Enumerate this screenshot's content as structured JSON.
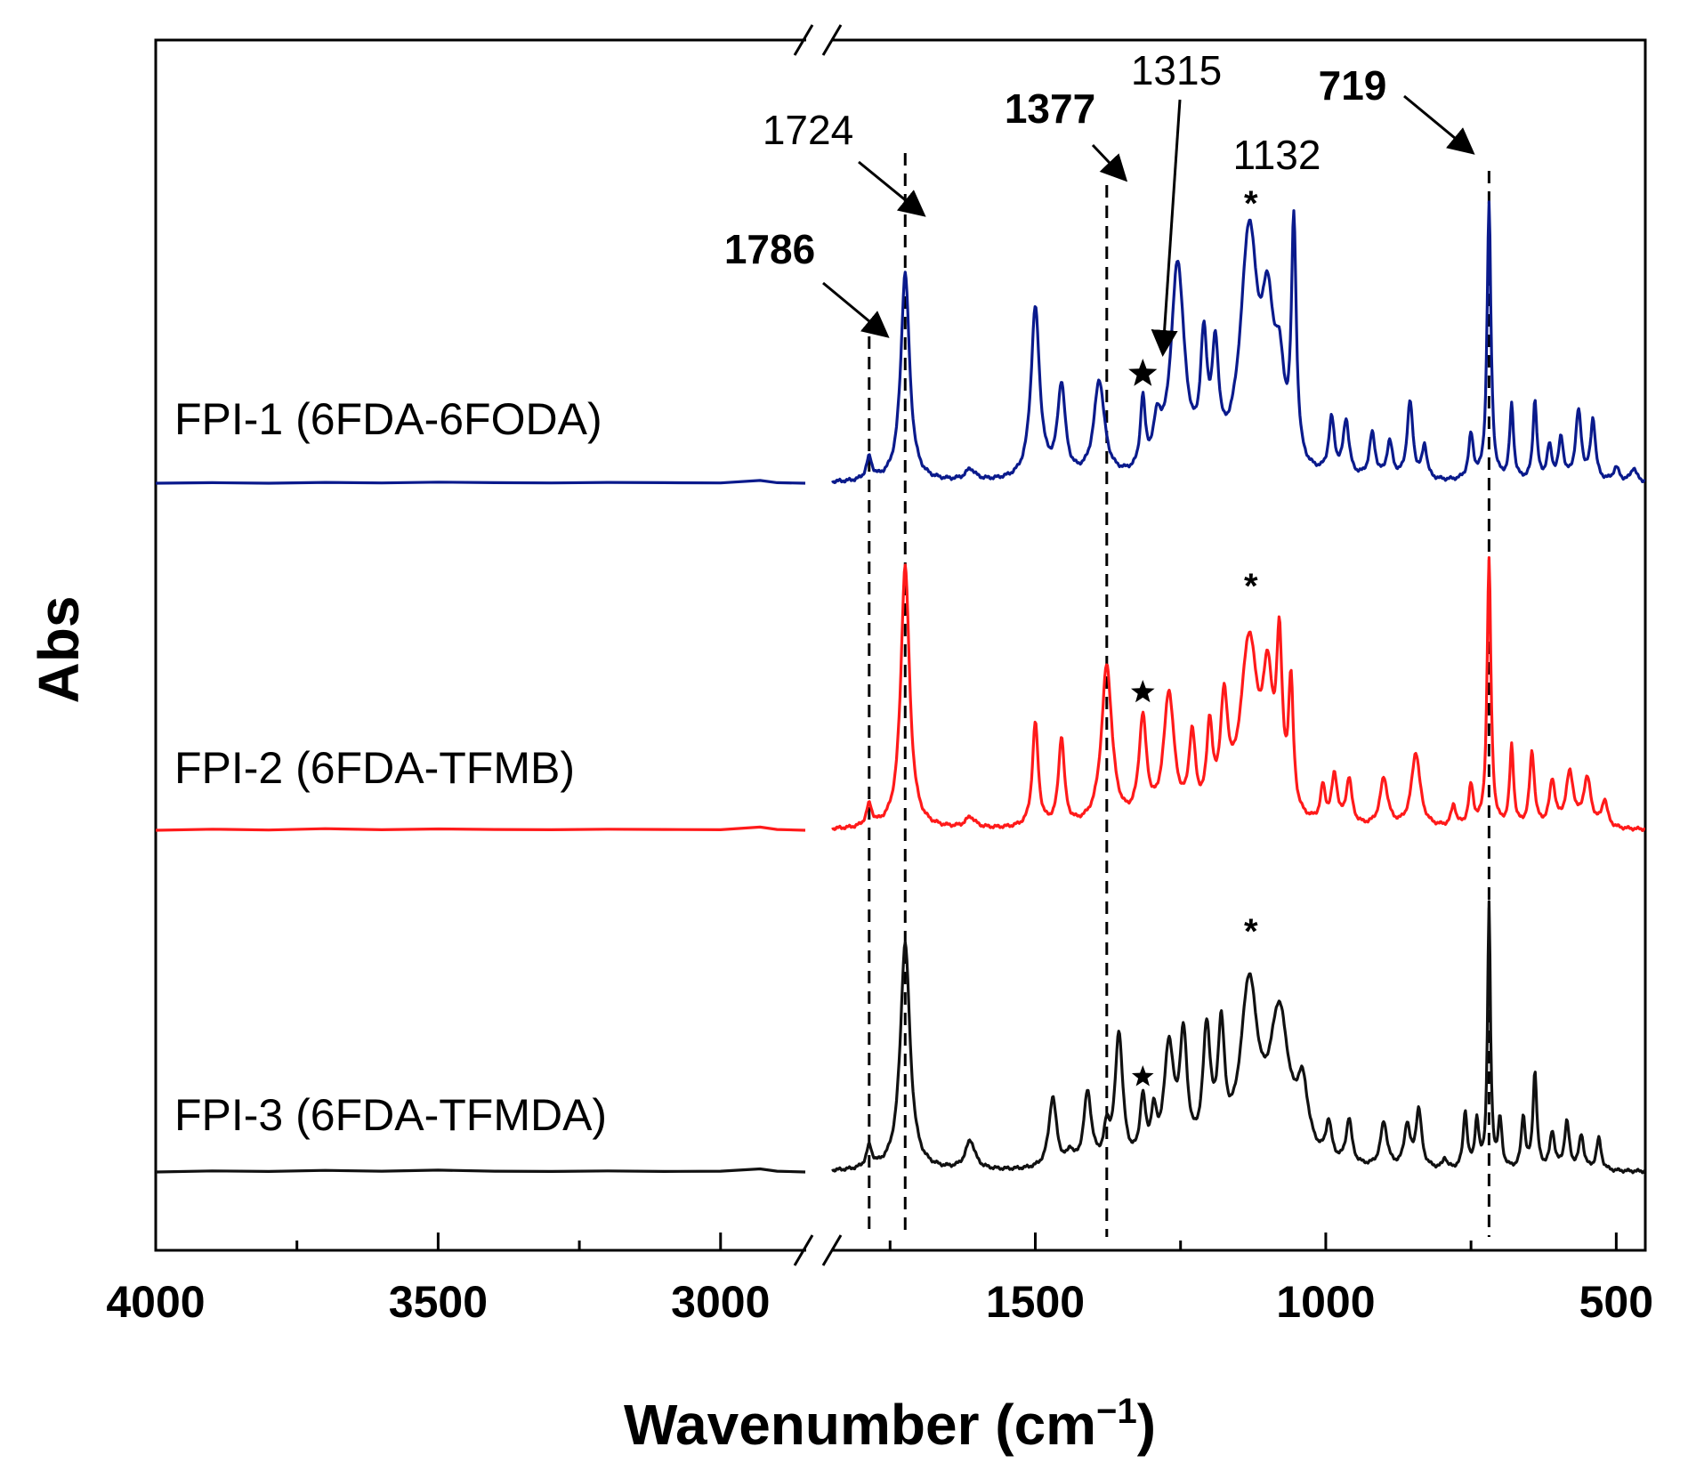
{
  "chart_data": {
    "type": "line",
    "title": "",
    "xlabel": "Wavenumber (cm",
    "xlabel_superscript": "−1",
    "xlabel_close": ")",
    "ylabel": "Abs",
    "x_reversed": true,
    "x_segments": [
      {
        "range": [
          4000,
          2850
        ],
        "ticks": [
          4000,
          3500,
          3000
        ],
        "minor_ticks": [
          3750,
          3250
        ]
      },
      {
        "range": [
          1850,
          450
        ],
        "ticks": [
          1500,
          1000,
          500
        ],
        "minor_ticks": [
          1750,
          1250,
          750
        ]
      }
    ],
    "axis_break": true,
    "reference_lines": [
      1786,
      1724,
      1377,
      719
    ],
    "annotations": [
      {
        "text": "1786",
        "target": 1786
      },
      {
        "text": "1724",
        "target": 1724
      },
      {
        "text": "1377",
        "target": 1377
      },
      {
        "text": "1315",
        "target": 1315
      },
      {
        "text": "1132",
        "target": 1132
      },
      {
        "text": "719",
        "target": 719
      }
    ],
    "series": [
      {
        "name": "FPI-1 (6FDA-6FODA)",
        "color": "#0a1a8c",
        "baseline": 0.0,
        "star_at": 1315,
        "asterisk_at": 1132,
        "left_points": [
          [
            4000,
            0.0
          ],
          [
            3900,
            0.002
          ],
          [
            3800,
            0.0
          ],
          [
            3700,
            0.003
          ],
          [
            3600,
            0.001
          ],
          [
            3500,
            0.004
          ],
          [
            3400,
            0.002
          ],
          [
            3300,
            0.001
          ],
          [
            3200,
            0.003
          ],
          [
            3100,
            0.002
          ],
          [
            3000,
            0.001
          ],
          [
            2930,
            0.01
          ],
          [
            2900,
            0.002
          ],
          [
            2850,
            0.0
          ]
        ],
        "peaks": [
          {
            "x": 1786,
            "h": 0.08,
            "w": 6
          },
          {
            "x": 1724,
            "h": 0.76,
            "w": 9
          },
          {
            "x": 1612,
            "h": 0.04,
            "w": 10
          },
          {
            "x": 1500,
            "h": 0.62,
            "w": 9
          },
          {
            "x": 1455,
            "h": 0.33,
            "w": 8
          },
          {
            "x": 1390,
            "h": 0.35,
            "w": 11
          },
          {
            "x": 1315,
            "h": 0.25,
            "w": 5
          },
          {
            "x": 1290,
            "h": 0.15,
            "w": 8
          },
          {
            "x": 1255,
            "h": 0.76,
            "w": 14
          },
          {
            "x": 1210,
            "h": 0.42,
            "w": 7
          },
          {
            "x": 1190,
            "h": 0.38,
            "w": 7
          },
          {
            "x": 1132,
            "h": 0.86,
            "w": 18
          },
          {
            "x": 1100,
            "h": 0.48,
            "w": 12
          },
          {
            "x": 1080,
            "h": 0.3,
            "w": 10
          },
          {
            "x": 1055,
            "h": 0.86,
            "w": 5
          },
          {
            "x": 990,
            "h": 0.2,
            "w": 6
          },
          {
            "x": 965,
            "h": 0.2,
            "w": 6
          },
          {
            "x": 920,
            "h": 0.16,
            "w": 6
          },
          {
            "x": 890,
            "h": 0.13,
            "w": 6
          },
          {
            "x": 855,
            "h": 0.28,
            "w": 6
          },
          {
            "x": 830,
            "h": 0.12,
            "w": 5
          },
          {
            "x": 750,
            "h": 0.16,
            "w": 5
          },
          {
            "x": 719,
            "h": 1.0,
            "w": 4
          },
          {
            "x": 680,
            "h": 0.27,
            "w": 4
          },
          {
            "x": 640,
            "h": 0.29,
            "w": 4
          },
          {
            "x": 615,
            "h": 0.12,
            "w": 5
          },
          {
            "x": 595,
            "h": 0.15,
            "w": 5
          },
          {
            "x": 565,
            "h": 0.25,
            "w": 6
          },
          {
            "x": 540,
            "h": 0.22,
            "w": 5
          },
          {
            "x": 500,
            "h": 0.05,
            "w": 6
          },
          {
            "x": 470,
            "h": 0.05,
            "w": 6
          }
        ]
      },
      {
        "name": "FPI-2 (6FDA-TFMB)",
        "color": "#ff1a1a",
        "baseline": 0.0,
        "star_at": 1315,
        "asterisk_at": 1132,
        "left_points": [
          [
            4000,
            0.0
          ],
          [
            3900,
            0.004
          ],
          [
            3800,
            0.001
          ],
          [
            3700,
            0.006
          ],
          [
            3600,
            0.002
          ],
          [
            3500,
            0.005
          ],
          [
            3400,
            0.003
          ],
          [
            3300,
            0.002
          ],
          [
            3200,
            0.004
          ],
          [
            3100,
            0.003
          ],
          [
            3000,
            0.002
          ],
          [
            2930,
            0.012
          ],
          [
            2900,
            0.003
          ],
          [
            2850,
            0.0
          ]
        ],
        "peaks": [
          {
            "x": 1786,
            "h": 0.08,
            "w": 6
          },
          {
            "x": 1724,
            "h": 0.99,
            "w": 9
          },
          {
            "x": 1612,
            "h": 0.04,
            "w": 10
          },
          {
            "x": 1500,
            "h": 0.39,
            "w": 6
          },
          {
            "x": 1455,
            "h": 0.33,
            "w": 6
          },
          {
            "x": 1377,
            "h": 0.6,
            "w": 11
          },
          {
            "x": 1315,
            "h": 0.38,
            "w": 8
          },
          {
            "x": 1270,
            "h": 0.48,
            "w": 11
          },
          {
            "x": 1230,
            "h": 0.3,
            "w": 7
          },
          {
            "x": 1200,
            "h": 0.32,
            "w": 6
          },
          {
            "x": 1175,
            "h": 0.4,
            "w": 8
          },
          {
            "x": 1132,
            "h": 0.67,
            "w": 18
          },
          {
            "x": 1100,
            "h": 0.45,
            "w": 10
          },
          {
            "x": 1080,
            "h": 0.6,
            "w": 6
          },
          {
            "x": 1060,
            "h": 0.48,
            "w": 5
          },
          {
            "x": 1005,
            "h": 0.13,
            "w": 5
          },
          {
            "x": 985,
            "h": 0.18,
            "w": 6
          },
          {
            "x": 960,
            "h": 0.17,
            "w": 6
          },
          {
            "x": 900,
            "h": 0.18,
            "w": 8
          },
          {
            "x": 845,
            "h": 0.28,
            "w": 9
          },
          {
            "x": 780,
            "h": 0.08,
            "w": 5
          },
          {
            "x": 750,
            "h": 0.15,
            "w": 5
          },
          {
            "x": 719,
            "h": 1.0,
            "w": 4
          },
          {
            "x": 680,
            "h": 0.3,
            "w": 4
          },
          {
            "x": 645,
            "h": 0.28,
            "w": 5
          },
          {
            "x": 610,
            "h": 0.17,
            "w": 6
          },
          {
            "x": 580,
            "h": 0.2,
            "w": 8
          },
          {
            "x": 550,
            "h": 0.18,
            "w": 8
          },
          {
            "x": 520,
            "h": 0.1,
            "w": 6
          }
        ]
      },
      {
        "name": "FPI-3 (6FDA-TFMDA)",
        "color": "#111111",
        "baseline": 0.0,
        "star_at": 1315,
        "asterisk_at": 1132,
        "left_points": [
          [
            4000,
            0.0
          ],
          [
            3900,
            0.004
          ],
          [
            3800,
            0.002
          ],
          [
            3700,
            0.006
          ],
          [
            3600,
            0.003
          ],
          [
            3500,
            0.007
          ],
          [
            3400,
            0.003
          ],
          [
            3300,
            0.002
          ],
          [
            3200,
            0.004
          ],
          [
            3100,
            0.002
          ],
          [
            3000,
            0.003
          ],
          [
            2930,
            0.012
          ],
          [
            2900,
            0.003
          ],
          [
            2850,
            0.0
          ]
        ],
        "peaks": [
          {
            "x": 1786,
            "h": 0.08,
            "w": 6
          },
          {
            "x": 1724,
            "h": 0.87,
            "w": 10
          },
          {
            "x": 1612,
            "h": 0.11,
            "w": 10
          },
          {
            "x": 1470,
            "h": 0.27,
            "w": 8
          },
          {
            "x": 1440,
            "h": 0.05,
            "w": 6
          },
          {
            "x": 1410,
            "h": 0.28,
            "w": 8
          },
          {
            "x": 1377,
            "h": 0.12,
            "w": 6
          },
          {
            "x": 1356,
            "h": 0.5,
            "w": 8
          },
          {
            "x": 1315,
            "h": 0.23,
            "w": 6
          },
          {
            "x": 1296,
            "h": 0.16,
            "w": 6
          },
          {
            "x": 1270,
            "h": 0.43,
            "w": 10
          },
          {
            "x": 1245,
            "h": 0.45,
            "w": 8
          },
          {
            "x": 1205,
            "h": 0.47,
            "w": 8
          },
          {
            "x": 1180,
            "h": 0.45,
            "w": 7
          },
          {
            "x": 1132,
            "h": 0.66,
            "w": 18
          },
          {
            "x": 1080,
            "h": 0.55,
            "w": 20
          },
          {
            "x": 1040,
            "h": 0.25,
            "w": 12
          },
          {
            "x": 995,
            "h": 0.14,
            "w": 6
          },
          {
            "x": 960,
            "h": 0.17,
            "w": 6
          },
          {
            "x": 900,
            "h": 0.17,
            "w": 7
          },
          {
            "x": 860,
            "h": 0.16,
            "w": 6
          },
          {
            "x": 840,
            "h": 0.22,
            "w": 6
          },
          {
            "x": 795,
            "h": 0.04,
            "w": 4
          },
          {
            "x": 760,
            "h": 0.22,
            "w": 4
          },
          {
            "x": 740,
            "h": 0.18,
            "w": 4
          },
          {
            "x": 719,
            "h": 1.0,
            "w": 3
          },
          {
            "x": 700,
            "h": 0.18,
            "w": 4
          },
          {
            "x": 660,
            "h": 0.2,
            "w": 4
          },
          {
            "x": 640,
            "h": 0.37,
            "w": 4
          },
          {
            "x": 610,
            "h": 0.14,
            "w": 5
          },
          {
            "x": 585,
            "h": 0.18,
            "w": 5
          },
          {
            "x": 560,
            "h": 0.13,
            "w": 5
          },
          {
            "x": 530,
            "h": 0.12,
            "w": 5
          }
        ]
      }
    ]
  }
}
